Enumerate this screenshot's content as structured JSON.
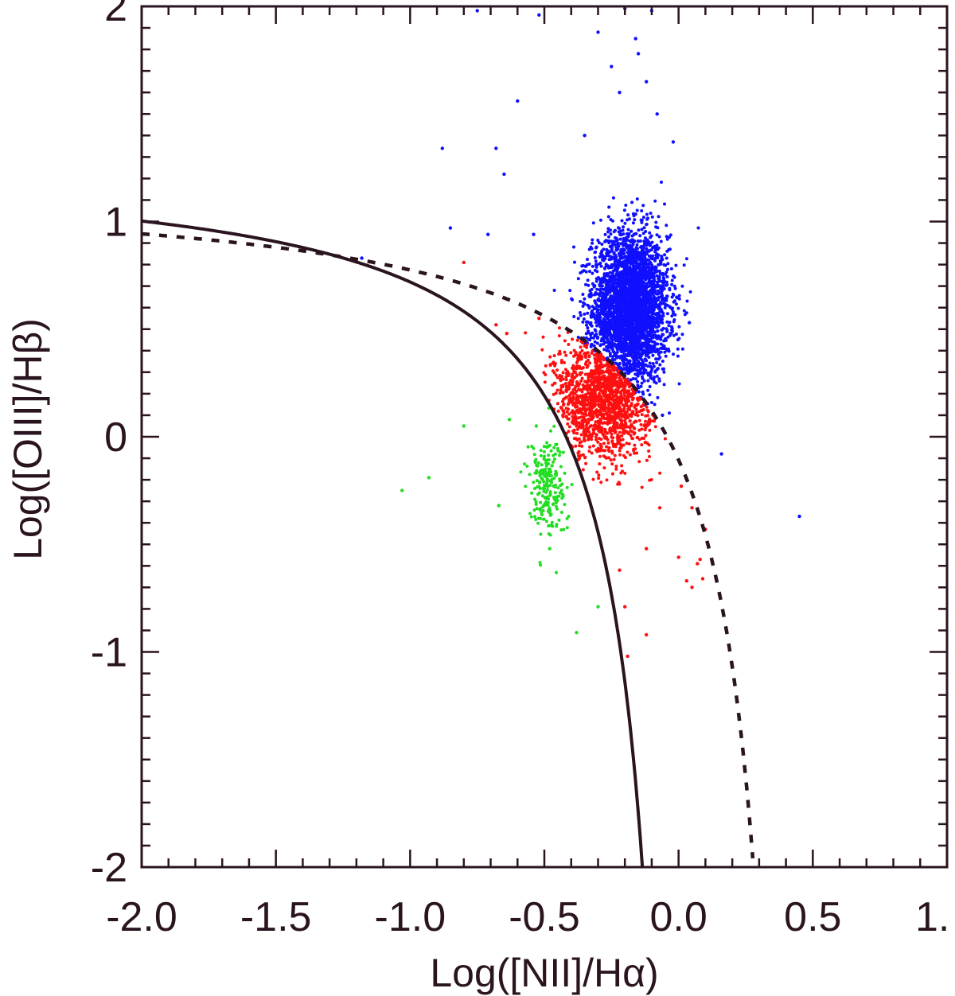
{
  "chart_data": {
    "type": "scatter",
    "title": "",
    "xlabel": "Log([NII]/Hα)",
    "ylabel": "Log([OIII]/Hβ)",
    "xlim": [
      -2.0,
      1.0
    ],
    "ylim": [
      -2.0,
      2.0
    ],
    "x_tick_labels": [
      "-2.0",
      "-1.5",
      "-1.0",
      "-0.5",
      "0.0",
      "0.5",
      "1."
    ],
    "x_ticks": [
      -2.0,
      -1.5,
      -1.0,
      -0.5,
      0.0,
      0.5,
      1.0
    ],
    "y_tick_labels": [
      "-2",
      "-1",
      "0",
      "1",
      "2"
    ],
    "y_ticks": [
      -2,
      -1,
      0,
      1,
      2
    ],
    "grid": false,
    "colors": {
      "axis": "#2a1420",
      "blue_points": "#1010ff",
      "red_points": "#ff1010",
      "green_points": "#22dd22",
      "curves": "#2a1420"
    },
    "series": [
      {
        "color": "blue",
        "distribution": {
          "center": [
            -0.18,
            0.6
          ],
          "spread": [
            0.07,
            0.17
          ],
          "count": 3500
        },
        "outliers": [
          [
            -0.75,
            1.98
          ],
          [
            -0.52,
            1.96
          ],
          [
            -0.3,
            1.88
          ],
          [
            -0.2,
            1.99
          ],
          [
            -0.1,
            1.98
          ],
          [
            -0.16,
            1.85
          ],
          [
            -0.15,
            1.78
          ],
          [
            -0.6,
            1.56
          ],
          [
            -0.88,
            1.34
          ],
          [
            -0.68,
            1.34
          ],
          [
            -0.65,
            1.22
          ],
          [
            -0.85,
            0.97
          ],
          [
            -0.71,
            0.94
          ],
          [
            -0.54,
            0.94
          ],
          [
            -0.22,
            1.6
          ],
          [
            -0.35,
            1.4
          ],
          [
            -0.08,
            1.5
          ],
          [
            -0.02,
            1.37
          ],
          [
            0.04,
            0.53
          ],
          [
            0.16,
            -0.08
          ],
          [
            0.45,
            -0.37
          ],
          [
            -0.06,
            0.1
          ],
          [
            -1.18,
            0.83
          ],
          [
            -0.25,
            1.72
          ],
          [
            -0.12,
            1.65
          ]
        ]
      },
      {
        "color": "red",
        "distribution": {
          "center": [
            -0.28,
            0.18
          ],
          "spread": [
            0.09,
            0.14
          ],
          "count": 1400
        },
        "outliers": [
          [
            -0.8,
            0.81
          ],
          [
            -0.68,
            0.52
          ],
          [
            -0.64,
            0.48
          ],
          [
            -0.52,
            0.55
          ],
          [
            0.0,
            -0.56
          ],
          [
            0.07,
            -0.59
          ],
          [
            0.08,
            -0.57
          ],
          [
            0.03,
            -0.67
          ],
          [
            0.05,
            -0.7
          ],
          [
            0.09,
            -0.66
          ],
          [
            -0.2,
            -0.79
          ],
          [
            -0.12,
            -0.92
          ],
          [
            -0.19,
            -1.02
          ],
          [
            -0.12,
            -0.52
          ],
          [
            -0.07,
            -0.33
          ],
          [
            0.01,
            -0.23
          ],
          [
            0.05,
            -0.33
          ],
          [
            0.1,
            -0.43
          ],
          [
            -0.22,
            -0.62
          ]
        ]
      },
      {
        "color": "green",
        "distribution": {
          "center": [
            -0.49,
            -0.22
          ],
          "spread": [
            0.035,
            0.12
          ],
          "count": 220
        },
        "outliers": [
          [
            -1.03,
            -0.25
          ],
          [
            -0.93,
            -0.19
          ],
          [
            -0.8,
            0.05
          ],
          [
            -0.63,
            0.08
          ],
          [
            -0.67,
            -0.32
          ],
          [
            -0.3,
            -0.79
          ],
          [
            -0.38,
            -0.91
          ],
          [
            -0.48,
            -0.52
          ],
          [
            -0.53,
            0.05
          ]
        ]
      }
    ],
    "curves": [
      {
        "style": "solid",
        "formula": "y = 0.61/(x-0.05) + 1.3",
        "x_range": [
          -2.0,
          -0.133
        ]
      },
      {
        "style": "dashed",
        "formula": "y = 0.61/(x-0.47) + 1.19",
        "x_range": [
          -2.0,
          0.282
        ]
      }
    ]
  }
}
